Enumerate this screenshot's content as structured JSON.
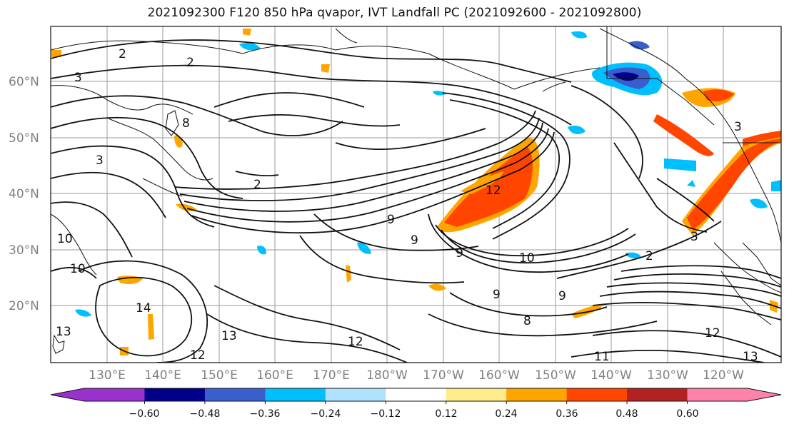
{
  "title": "2021092300 F120 850 hPa qvapor, IVT Landfall PC (2021092600 - 2021092800)",
  "lat_labels": [
    "60°N",
    "50°N",
    "40°N",
    "30°N",
    "20°N"
  ],
  "lon_labels": [
    "130°E",
    "140°E",
    "150°E",
    "160°E",
    "170°E",
    "180°W",
    "170°W",
    "160°W",
    "150°W",
    "140°W",
    "130°W",
    "120°W"
  ],
  "contour_labels": [
    "2",
    "2",
    "3",
    "3",
    "2",
    "8",
    "10",
    "10",
    "9",
    "9",
    "9",
    "10",
    "12",
    "3",
    "3",
    "2",
    "14",
    "13",
    "13",
    "12",
    "12",
    "9",
    "8",
    "9",
    "11",
    "12",
    "13"
  ],
  "colorbar": {
    "ticks": [
      "−0.60",
      "−0.48",
      "−0.36",
      "−0.24",
      "−0.12",
      "0.12",
      "0.24",
      "0.36",
      "0.48",
      "0.60"
    ],
    "colors": [
      "#9932cc",
      "#00008b",
      "#3a5fcd",
      "#00bfff",
      "#b0e2ff",
      "#ffffff",
      "#ffec8b",
      "#ffa500",
      "#ff4500",
      "#b22222",
      "#ff82ab"
    ]
  }
}
